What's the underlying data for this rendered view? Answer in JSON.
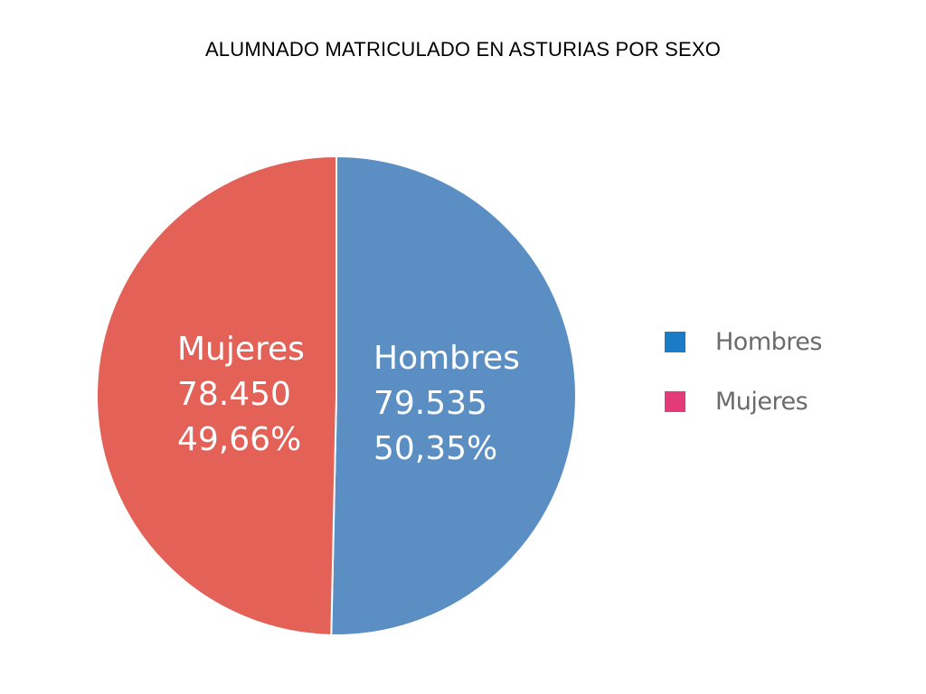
{
  "title": "ALUMNADO MATRICULADO EN ASTURIAS POR SEXO",
  "chart_data": {
    "type": "pie",
    "title": "ALUMNADO MATRICULADO EN ASTURIAS POR SEXO",
    "slices": [
      {
        "name": "Hombres",
        "value": 79535,
        "value_label": "79.535",
        "percent_label": "50,35%",
        "color": "#5b8fc4"
      },
      {
        "name": "Mujeres",
        "value": 78450,
        "value_label": "78.450",
        "percent_label": "49,66%",
        "color": "#e46158"
      }
    ],
    "legend": {
      "position": "right",
      "items": [
        {
          "label": "Hombres",
          "color": "#1b7bc4"
        },
        {
          "label": "Mujeres",
          "color": "#e23b78"
        }
      ]
    }
  }
}
